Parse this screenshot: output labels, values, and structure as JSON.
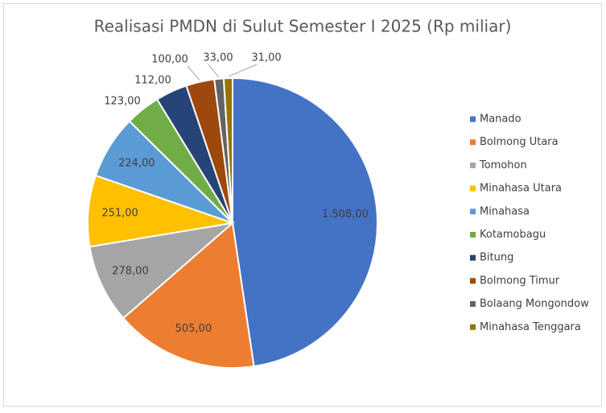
{
  "chart_data": {
    "type": "pie",
    "title": "Realisasi PMDN di Sulut Semester I 2025 (Rp miliar)",
    "categories": [
      "Manado",
      "Bolmong Utara",
      "Tomohon",
      "Minahasa Utara",
      "Minahasa",
      "Kotamobagu",
      "Bitung",
      "Bolmong Timur",
      "Bolaang Mongondow",
      "Minahasa Tenggara"
    ],
    "values": [
      1508,
      505,
      278,
      251,
      224,
      123,
      112,
      100,
      33,
      31
    ],
    "value_labels": [
      "1.508,00",
      "505,00",
      "278,00",
      "251,00",
      "224,00",
      "123,00",
      "112,00",
      "100,00",
      "33,00",
      "31,00"
    ],
    "colors": [
      "#4472c4",
      "#ed7d31",
      "#a5a5a5",
      "#ffc000",
      "#5b9bd5",
      "#70ad47",
      "#264478",
      "#9e480e",
      "#636363",
      "#997300"
    ],
    "legend": "right"
  }
}
